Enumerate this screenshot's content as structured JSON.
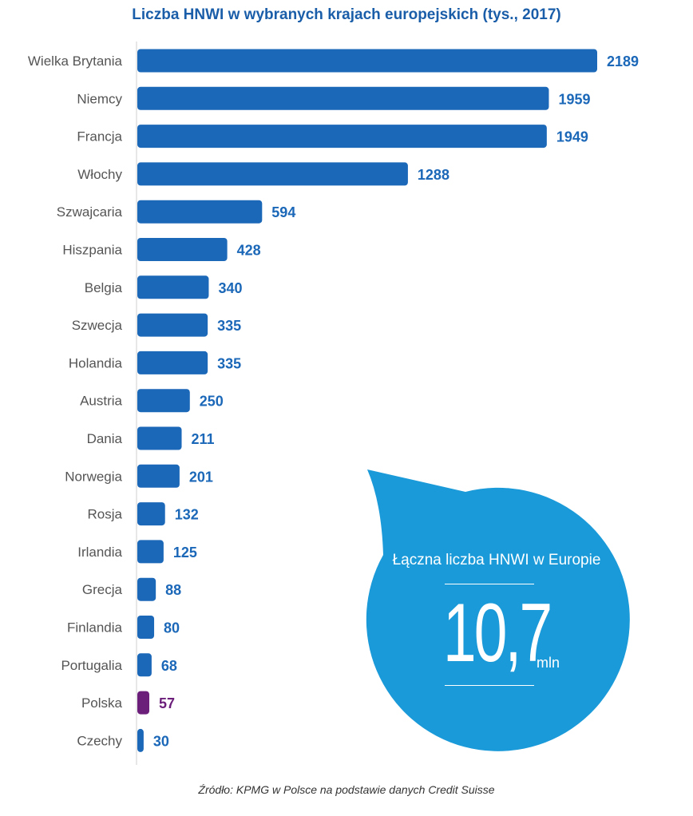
{
  "chart_data": {
    "type": "bar",
    "orientation": "horizontal",
    "title": "Liczba HNWI w wybranych krajach europejskich (tys., 2017)",
    "categories": [
      "Wielka Brytania",
      "Niemcy",
      "Francja",
      "Włochy",
      "Szwajcaria",
      "Hiszpania",
      "Belgia",
      "Szwecja",
      "Holandia",
      "Austria",
      "Dania",
      "Norwegia",
      "Rosja",
      "Irlandia",
      "Grecja",
      "Finlandia",
      "Portugalia",
      "Polska",
      "Czechy"
    ],
    "values": [
      2189,
      1959,
      1949,
      1288,
      594,
      428,
      340,
      335,
      335,
      250,
      211,
      201,
      132,
      125,
      88,
      80,
      68,
      57,
      30
    ],
    "highlight_category": "Polska",
    "xlim": [
      0,
      2189
    ],
    "grid": false,
    "xlabel": "",
    "ylabel": ""
  },
  "colors": {
    "bar": "#1b67b8",
    "highlight": "#6b1e7a",
    "callout": "#1a9ad9",
    "title": "#1a5da8"
  },
  "callout": {
    "caption": "Łączna liczba HNWI w Europie",
    "value": "10,7",
    "unit": "mln"
  },
  "source": "Źródło: KPMG w Polsce na podstawie danych Credit Suisse"
}
